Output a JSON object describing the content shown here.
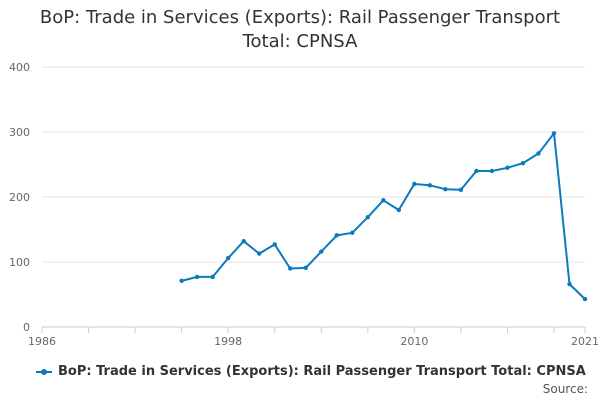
{
  "chart_data": {
    "type": "line",
    "title_line1": "BoP: Trade in Services (Exports): Rail Passenger Transport",
    "title_line2": "Total: CPNSA",
    "xlabel": "",
    "ylabel": "",
    "ylim": [
      0,
      400
    ],
    "xlim": [
      1986,
      2021
    ],
    "yticks": [
      0,
      100,
      200,
      300,
      400
    ],
    "xtick_labels": [
      "1986",
      "1998",
      "2010",
      "2021"
    ],
    "grid": "horizontal",
    "legend_position": "bottom-left",
    "series": [
      {
        "name": "BoP: Trade in Services (Exports): Rail Passenger Transport Total: CPNSA",
        "color": "#0b7abf",
        "points": [
          [
            1995,
            71
          ],
          [
            1996,
            77
          ],
          [
            1997,
            77
          ],
          [
            1998,
            106
          ],
          [
            1999,
            132
          ],
          [
            2000,
            113
          ],
          [
            2001,
            127
          ],
          [
            2002,
            90
          ],
          [
            2003,
            91
          ],
          [
            2004,
            116
          ],
          [
            2005,
            141
          ],
          [
            2006,
            145
          ],
          [
            2007,
            169
          ],
          [
            2008,
            195
          ],
          [
            2009,
            180
          ],
          [
            2010,
            220
          ],
          [
            2011,
            218
          ],
          [
            2012,
            212
          ],
          [
            2013,
            211
          ],
          [
            2014,
            240
          ],
          [
            2015,
            240
          ],
          [
            2016,
            245
          ],
          [
            2017,
            252
          ],
          [
            2018,
            267
          ],
          [
            2019,
            298
          ],
          [
            2020,
            66
          ],
          [
            2021,
            43
          ]
        ]
      }
    ]
  },
  "legend": {
    "label": "BoP: Trade in Services (Exports): Rail Passenger Transport Total: CPNSA"
  },
  "source_label": "Source:"
}
